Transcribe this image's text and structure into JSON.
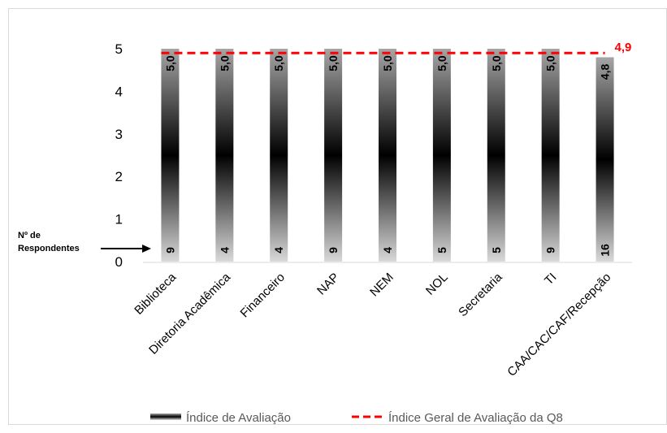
{
  "chart_data": {
    "type": "bar",
    "categories": [
      "Biblioteca",
      "Diretoria Acadêmica",
      "Financeiro",
      "NAP",
      "NEM",
      "NOL",
      "Secretaria",
      "TI",
      "CAA/CAC/CAF/Recepção"
    ],
    "series": [
      {
        "name": "Índice de Avaliação",
        "values": [
          5.0,
          5.0,
          5.0,
          5.0,
          5.0,
          5.0,
          5.0,
          5.0,
          4.8
        ],
        "value_labels": [
          "5,0",
          "5,0",
          "5,0",
          "5,0",
          "5,0",
          "5,0",
          "5,0",
          "5,0",
          "4,8"
        ]
      },
      {
        "name": "Índice Geral de Avaliação da Q8",
        "type": "line",
        "style": "dashed",
        "value": 4.9,
        "value_label": "4,9",
        "color": "#ff0000"
      }
    ],
    "respondents": [
      9,
      4,
      4,
      9,
      4,
      5,
      5,
      9,
      16
    ],
    "respondents_annotation_line1": "Nº de",
    "respondents_annotation_line2": "Respondentes",
    "ylim": [
      0,
      5
    ],
    "yticks": [
      "0",
      "1",
      "2",
      "3",
      "4",
      "5"
    ],
    "grid": false,
    "legend": "bottom",
    "colors": {
      "bar_dark": "#000000",
      "bar_light": "#d9d9d9",
      "average_line": "#ff0000",
      "axis": "#d9d9d9"
    }
  }
}
